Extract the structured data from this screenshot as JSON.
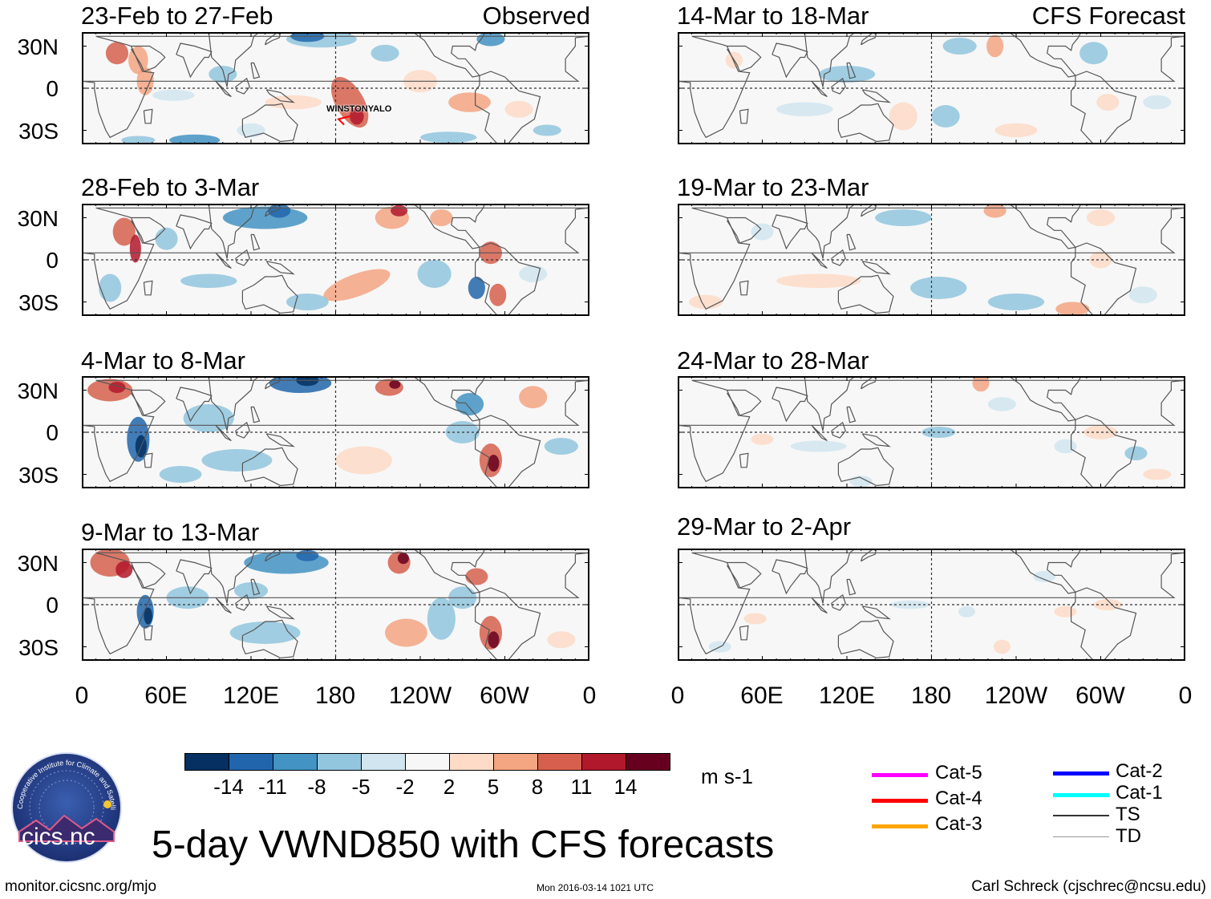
{
  "panels_left": [
    {
      "title": "23-Feb to 27-Feb",
      "tag": "Observed"
    },
    {
      "title": "28-Feb to 3-Mar",
      "tag": ""
    },
    {
      "title": "4-Mar to 8-Mar",
      "tag": ""
    },
    {
      "title": "9-Mar to 13-Mar",
      "tag": ""
    }
  ],
  "panels_right": [
    {
      "title": "14-Mar to 18-Mar",
      "tag": "CFS Forecast"
    },
    {
      "title": "19-Mar to 23-Mar",
      "tag": ""
    },
    {
      "title": "24-Mar to 28-Mar",
      "tag": ""
    },
    {
      "title": "29-Mar to 2-Apr",
      "tag": ""
    }
  ],
  "storm_label": "WINSTONYALO",
  "lat_labels": [
    "30N",
    "0",
    "30S"
  ],
  "lon_labels": [
    "0",
    "60E",
    "120E",
    "180",
    "120W",
    "60W",
    "0"
  ],
  "colorbar": {
    "colors": [
      "#053061",
      "#2166ac",
      "#4393c3",
      "#92c5de",
      "#d1e5f0",
      "#f7f7f7",
      "#fddbc7",
      "#f4a582",
      "#d6604d",
      "#b2182b",
      "#67001f"
    ],
    "labels": [
      "-14",
      "-11",
      "-8",
      "-5",
      "-2",
      "2",
      "5",
      "8",
      "11",
      "14"
    ],
    "units": "m s-1"
  },
  "legend": {
    "left": [
      {
        "label": "Cat-5",
        "color": "#ff00ff"
      },
      {
        "label": "Cat-4",
        "color": "#ff0000"
      },
      {
        "label": "Cat-3",
        "color": "#ffa500"
      }
    ],
    "right": [
      {
        "label": "Cat-2",
        "color": "#0000ff"
      },
      {
        "label": "Cat-1",
        "color": "#00ffff"
      },
      {
        "label": "TS",
        "color": "#333333"
      },
      {
        "label": "TD",
        "color": "#999999"
      }
    ]
  },
  "logo_text": "cics.nc",
  "logo_ring_text": "Cooperative Institute for Climate and Satellites",
  "main_title": "5-day VWND850 with CFS forecasts",
  "footer": {
    "left": "monitor.cicsnc.org/mjo",
    "center": "Mon 2016-03-14 1021 UTC",
    "right": "Carl Schreck (cjschrec@ncsu.edu)"
  }
}
